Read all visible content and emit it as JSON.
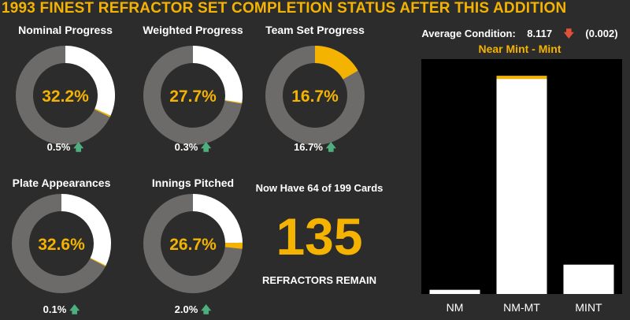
{
  "header": {
    "title": "1993 FINEST REFRACTOR SET COMPLETION STATUS AFTER THIS ADDITION"
  },
  "colors": {
    "accent": "#f5b301",
    "ring_bg": "#6d6b69",
    "ring_fill": "#ffffff",
    "up": "#4caf7d",
    "down": "#e0513a",
    "chart_bg": "#000000"
  },
  "progress": [
    {
      "label": "Nominal Progress",
      "value_text": "32.2%",
      "value": 32.2,
      "added": 0.5,
      "delta_text": "0.5%",
      "arrow": "up"
    },
    {
      "label": "Weighted Progress",
      "value_text": "27.7%",
      "value": 27.7,
      "added": 0.3,
      "delta_text": "0.3%",
      "arrow": "up"
    },
    {
      "label": "Team Set Progress",
      "value_text": "16.7%",
      "value": 16.7,
      "added": 16.7,
      "delta_text": "16.7%",
      "arrow": "up"
    },
    {
      "label": "Plate Appearances",
      "value_text": "32.6%",
      "value": 32.6,
      "added": 0.1,
      "delta_text": "0.1%",
      "arrow": "up"
    },
    {
      "label": "Innings Pitched",
      "value_text": "26.7%",
      "value": 26.7,
      "added": 2.0,
      "delta_text": "2.0%",
      "arrow": "up"
    }
  ],
  "cards": {
    "have_text": "Now Have 64 of 199 Cards",
    "remain": "135",
    "remain_label": "REFRACTORS REMAIN"
  },
  "condition": {
    "label": "Average Condition:",
    "value": "8.117",
    "arrow": "down",
    "change": "(0.002)",
    "grade": "Near Mint - Mint"
  },
  "chart_data": {
    "type": "bar",
    "categories": [
      "NM",
      "NM-MT",
      "MINT"
    ],
    "values": [
      1,
      52,
      7
    ],
    "added": [
      0,
      1,
      0
    ],
    "ylim": [
      0,
      56
    ],
    "grid": false
  }
}
